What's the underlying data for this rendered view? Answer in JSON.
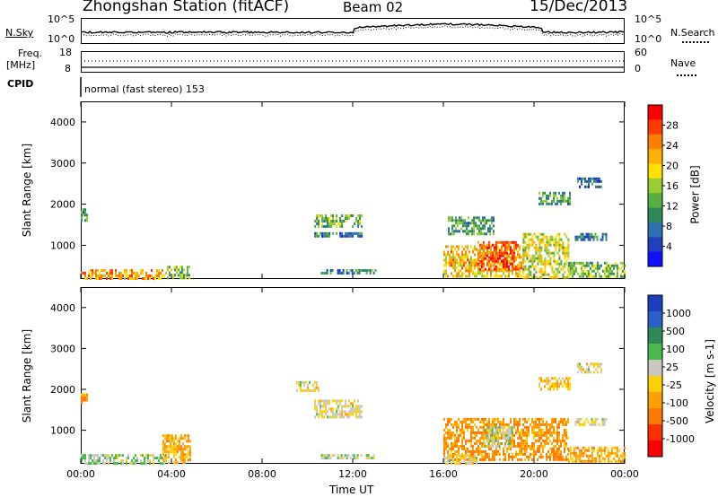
{
  "header": {
    "station": "Zhongshan Station (fitACF)",
    "beam": "Beam 02",
    "date": "15/Dec/2013"
  },
  "top_panels": {
    "noise": {
      "left_label": "N.Sky",
      "right_label": "N.Search",
      "left_ticks": [
        "10^5",
        "10^0"
      ],
      "right_ticks": [
        "10^5",
        "10^0"
      ]
    },
    "freq": {
      "left_label_1": "Freq.",
      "left_label_2": "[MHz]",
      "right_label": "Nave",
      "left_ticks": [
        "18",
        "8"
      ],
      "right_ticks": [
        "60",
        "0"
      ]
    },
    "cpid": {
      "label": "CPID",
      "value": "normal (fast stereo) 153"
    }
  },
  "chart_data": [
    {
      "type": "heatmap",
      "name": "power",
      "ylabel": "Slant Range [km]",
      "ylim": [
        180,
        4500
      ],
      "xlim": [
        0,
        24
      ],
      "yticks": [
        "4000",
        "3000",
        "2000",
        "1000"
      ],
      "colorbar": {
        "label": "Power [dB]",
        "ticks": [
          "28",
          "24",
          "20",
          "16",
          "12",
          "8",
          "4"
        ],
        "colors": [
          "#ff0000",
          "#ff3b00",
          "#ff8000",
          "#ffb000",
          "#ffe000",
          "#9acd32",
          "#55b040",
          "#2e8b57",
          "#2e6fb0",
          "#2040c0",
          "#1010ff"
        ]
      },
      "features": [
        {
          "t0": 0.0,
          "t1": 3.8,
          "r0": 220,
          "r1": 420,
          "v": 22
        },
        {
          "t0": 3.8,
          "t1": 4.8,
          "r0": 220,
          "r1": 500,
          "v": 14
        },
        {
          "t0": 0.0,
          "t1": 0.3,
          "r0": 1600,
          "r1": 1900,
          "v": 10
        },
        {
          "t0": 10.3,
          "t1": 12.4,
          "r0": 1450,
          "r1": 1750,
          "v": 12
        },
        {
          "t0": 10.3,
          "t1": 12.4,
          "r0": 1250,
          "r1": 1320,
          "v": 6
        },
        {
          "t0": 10.6,
          "t1": 13.0,
          "r0": 300,
          "r1": 420,
          "v": 9
        },
        {
          "t0": 16.0,
          "t1": 19.5,
          "r0": 250,
          "r1": 1000,
          "v": 20
        },
        {
          "t0": 17.5,
          "t1": 19.3,
          "r0": 400,
          "r1": 1100,
          "v": 26
        },
        {
          "t0": 19.5,
          "t1": 21.5,
          "r0": 250,
          "r1": 1300,
          "v": 16
        },
        {
          "t0": 21.5,
          "t1": 24.0,
          "r0": 250,
          "r1": 600,
          "v": 13
        },
        {
          "t0": 21.8,
          "t1": 23.2,
          "r0": 1150,
          "r1": 1300,
          "v": 8
        },
        {
          "t0": 21.9,
          "t1": 23.0,
          "r0": 2400,
          "r1": 2650,
          "v": 6
        },
        {
          "t0": 20.2,
          "t1": 21.6,
          "r0": 2000,
          "r1": 2300,
          "v": 10
        },
        {
          "t0": 16.2,
          "t1": 18.2,
          "r0": 1300,
          "r1": 1700,
          "v": 10
        }
      ]
    },
    {
      "type": "heatmap",
      "name": "velocity",
      "ylabel": "Slant Range [km]",
      "xlabel": "Time UT",
      "ylim": [
        180,
        4500
      ],
      "xlim": [
        0,
        24
      ],
      "yticks": [
        "4000",
        "3000",
        "2000",
        "1000"
      ],
      "xticks": [
        "00:00",
        "04:00",
        "08:00",
        "12:00",
        "16:00",
        "20:00",
        "00:00"
      ],
      "colorbar": {
        "label": "Velocity [m s-1]",
        "ticks": [
          "1000",
          "500",
          "100",
          "25",
          "-25",
          "-100",
          "-500",
          "-1000"
        ],
        "colors": [
          "#1a3fbf",
          "#2a60c8",
          "#2e8b57",
          "#4bb84b",
          "#c8c8c0",
          "#ffd000",
          "#ffa000",
          "#ff7a00",
          "#ff3000",
          "#ff0000"
        ]
      },
      "features": [
        {
          "t0": 0.0,
          "t1": 3.8,
          "r0": 220,
          "r1": 420,
          "v": 200
        },
        {
          "t0": 3.6,
          "t1": 4.8,
          "r0": 220,
          "r1": 900,
          "v": -300
        },
        {
          "t0": 0.0,
          "t1": 0.3,
          "r0": 1700,
          "r1": 1900,
          "v": -400
        },
        {
          "t0": 10.3,
          "t1": 12.4,
          "r0": 1350,
          "r1": 1750,
          "v": 0
        },
        {
          "t0": 9.5,
          "t1": 10.5,
          "r0": 2000,
          "r1": 2200,
          "v": 0
        },
        {
          "t0": 10.6,
          "t1": 13.0,
          "r0": 300,
          "r1": 420,
          "v": 150
        },
        {
          "t0": 16.0,
          "t1": 21.5,
          "r0": 250,
          "r1": 1300,
          "v": -400
        },
        {
          "t0": 17.8,
          "t1": 19.0,
          "r0": 600,
          "r1": 1100,
          "v": 150
        },
        {
          "t0": 16.0,
          "t1": 17.5,
          "r0": 220,
          "r1": 420,
          "v": 0
        },
        {
          "t0": 21.5,
          "t1": 24.0,
          "r0": 250,
          "r1": 600,
          "v": -300
        },
        {
          "t0": 21.8,
          "t1": 23.2,
          "r0": 1150,
          "r1": 1300,
          "v": 0
        },
        {
          "t0": 21.9,
          "t1": 23.0,
          "r0": 2400,
          "r1": 2650,
          "v": 0
        },
        {
          "t0": 20.2,
          "t1": 21.6,
          "r0": 2000,
          "r1": 2300,
          "v": -200
        }
      ]
    }
  ]
}
